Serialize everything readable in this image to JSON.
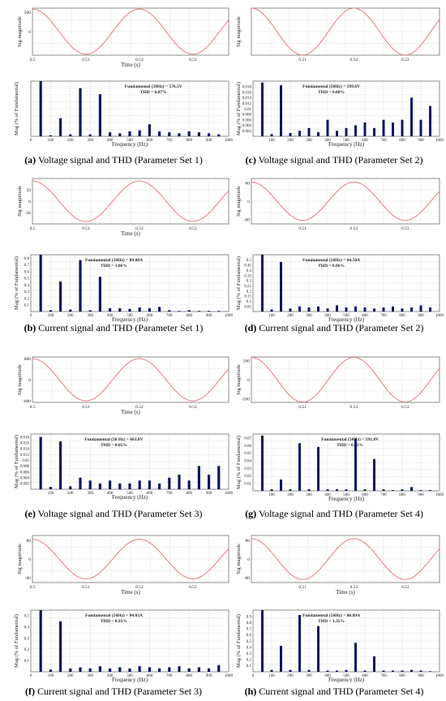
{
  "colors": {
    "signal": "#e36f6f",
    "bar": "#0b1466",
    "grid": "#b9b9b9",
    "frame": "#444444"
  },
  "chart_data": [
    {
      "id": "a-sig",
      "type": "line",
      "title": "",
      "xlabel": "Time (s)",
      "ylabel": "Sig magnitude",
      "xlim": [
        0.5,
        0.5367
      ],
      "ylim": [
        -600,
        600
      ],
      "yticks": [
        "500",
        "0"
      ],
      "xticks": [
        "0.5",
        "0.51",
        "0.52",
        "0.53"
      ],
      "amplitude": 576.5,
      "frequency": 50
    },
    {
      "id": "a-thd",
      "type": "bar",
      "xlabel": "Frequency (Hz)",
      "ylabel": "Mag (% of Fundamental)",
      "xlim": [
        0,
        1000
      ],
      "ylim": [
        0,
        0.55
      ],
      "xticks": [
        "0",
        "100",
        "200",
        "300",
        "400",
        "500",
        "600",
        "700",
        "800",
        "900",
        "1000"
      ],
      "yticks": [],
      "annotation": [
        "Fundamental (50Hz) = 576.5V",
        "THD = 0.87%"
      ],
      "annotation_pos": 0.62,
      "x": [
        50,
        100,
        150,
        200,
        250,
        300,
        350,
        400,
        450,
        500,
        550,
        600,
        650,
        700,
        750,
        800,
        850,
        900,
        950
      ],
      "values": [
        0.55,
        0.01,
        0.18,
        0.02,
        0.48,
        0.02,
        0.42,
        0.04,
        0.03,
        0.05,
        0.06,
        0.12,
        0.05,
        0.04,
        0.03,
        0.05,
        0.04,
        0.03,
        0.02
      ]
    },
    {
      "id": "c-sig",
      "type": "line",
      "xlabel": "",
      "ylabel": "Sig magnitude",
      "xlim": [
        0.5,
        0.5367
      ],
      "ylim": [
        -600,
        600
      ],
      "yticks": [],
      "xticks": [
        "0.51",
        "0.52",
        "0.53"
      ],
      "amplitude": 599.6,
      "frequency": 50
    },
    {
      "id": "c-thd",
      "type": "bar",
      "xlabel": "Frequency (Hz)",
      "ylabel": "Mag (% of Fundamental)",
      "xlim": [
        0,
        1000
      ],
      "ylim": [
        0,
        0.02
      ],
      "xticks": [
        "100",
        "200",
        "300",
        "400",
        "500",
        "600",
        "700",
        "800",
        "900",
        "1000"
      ],
      "yticks": [
        "0.018",
        "0.016",
        "0.014",
        "0.012",
        "0.01",
        "0.008",
        "0.006",
        "0.004",
        "0.002"
      ],
      "annotation": [
        "Fundamental (50Hz) = 599.6V",
        "THD = 0.08%"
      ],
      "annotation_pos": 0.42,
      "x": [
        50,
        100,
        150,
        200,
        250,
        300,
        350,
        400,
        450,
        500,
        550,
        600,
        650,
        700,
        750,
        800,
        850,
        900,
        950
      ],
      "values": [
        0.0195,
        0.0008,
        0.0185,
        0.0012,
        0.002,
        0.003,
        0.0015,
        0.006,
        0.002,
        0.003,
        0.004,
        0.005,
        0.003,
        0.006,
        0.005,
        0.006,
        0.014,
        0.006,
        0.011
      ]
    },
    {
      "id": "b-sig",
      "type": "line",
      "xlabel": "Time (s)",
      "ylabel": "Sig magnitude",
      "xlim": [
        0.5,
        0.5367
      ],
      "ylim": [
        -100,
        100
      ],
      "yticks": [
        "50",
        "0",
        "-50"
      ],
      "xticks": [
        "0.5",
        "0.51",
        "0.52",
        "0.53"
      ],
      "amplitude": 89.08,
      "frequency": 50
    },
    {
      "id": "b-thd",
      "type": "bar",
      "xlabel": "Frequency (Hz)",
      "ylabel": "Mag (% of Fundamental)",
      "xlim": [
        0,
        1000
      ],
      "ylim": [
        0,
        0.85
      ],
      "xticks": [
        "0",
        "100",
        "200",
        "300",
        "400",
        "500",
        "600",
        "700",
        "800",
        "900",
        "1000"
      ],
      "yticks": [
        "0.8",
        "0.7",
        "0.6",
        "0.5",
        "0.4",
        "0.3",
        "0.2",
        "0.1"
      ],
      "annotation": [
        "Fundamental (50Hz) = 89.08A",
        "THD = 1.06%"
      ],
      "annotation_pos": 0.42,
      "x": [
        50,
        100,
        150,
        200,
        250,
        300,
        350,
        400,
        450,
        500,
        550,
        600,
        650,
        700,
        750,
        800,
        850,
        900,
        950
      ],
      "values": [
        0.85,
        0.02,
        0.45,
        0.03,
        0.77,
        0.02,
        0.52,
        0.05,
        0.05,
        0.04,
        0.06,
        0.05,
        0.07,
        0.02,
        0.01,
        0.02,
        0.01,
        0.01,
        0.01
      ]
    },
    {
      "id": "d-sig",
      "type": "line",
      "xlabel": "",
      "ylabel": "Sig magnitude",
      "xlim": [
        0.5,
        0.5367
      ],
      "ylim": [
        -100,
        100
      ],
      "yticks": [
        "80",
        "0",
        "-80"
      ],
      "xticks": [
        "0.51",
        "0.52",
        "0.53"
      ],
      "amplitude": 84.5,
      "frequency": 50
    },
    {
      "id": "d-thd",
      "type": "bar",
      "xlabel": "Frequency (Hz)",
      "ylabel": "Mag (% of Fundamental)",
      "xlim": [
        0,
        1000
      ],
      "ylim": [
        0,
        0.55
      ],
      "xticks": [
        "100",
        "200",
        "300",
        "400",
        "500",
        "600",
        "700",
        "800",
        "900",
        "1000"
      ],
      "yticks": [
        "0.5",
        "0.45",
        "0.4",
        "0.35",
        "0.3",
        "0.25",
        "0.2",
        "0.15",
        "0.1",
        "0.05"
      ],
      "annotation": [
        "Fundamental (50Hz) = 84.50A",
        "THD = 0.96%"
      ],
      "annotation_pos": 0.42,
      "x": [
        50,
        100,
        150,
        200,
        250,
        300,
        350,
        400,
        450,
        500,
        550,
        600,
        650,
        700,
        750,
        800,
        850,
        900,
        950
      ],
      "values": [
        0.55,
        0.02,
        0.48,
        0.03,
        0.05,
        0.04,
        0.05,
        0.03,
        0.06,
        0.04,
        0.05,
        0.04,
        0.03,
        0.04,
        0.05,
        0.03,
        0.04,
        0.06,
        0.04
      ]
    },
    {
      "id": "e-sig",
      "type": "line",
      "xlabel": "Time (s)",
      "ylabel": "Sig magnitude",
      "xlim": [
        0.5,
        0.5367
      ],
      "ylim": [
        -650,
        650
      ],
      "yticks": [
        "600",
        "0",
        "-600"
      ],
      "xticks": [
        "0.5",
        "0.51",
        "0.52",
        "0.53"
      ],
      "amplitude": 603.8,
      "frequency": 50
    },
    {
      "id": "e-thd",
      "type": "bar",
      "xlabel": "Frequency (Hz)",
      "ylabel": "Mag (% of Fundamental)",
      "xlim": [
        0,
        1000
      ],
      "ylim": [
        0,
        0.019
      ],
      "xticks": [
        "100",
        "200",
        "300",
        "400",
        "500",
        "600",
        "700",
        "800",
        "900",
        "1000"
      ],
      "yticks": [
        "0.018",
        "0.016",
        "0.014",
        "0.012",
        "0.01",
        "0.008",
        "0.006",
        "0.004",
        "0.002"
      ],
      "annotation": [
        "Fundamental (50 Hz) = 603.8V",
        "THD = 0.05%"
      ],
      "annotation_pos": 0.42,
      "x": [
        50,
        100,
        150,
        200,
        250,
        300,
        350,
        400,
        450,
        500,
        550,
        600,
        650,
        700,
        750,
        800,
        850,
        900,
        950
      ],
      "values": [
        0.018,
        0.0008,
        0.0165,
        0.001,
        0.004,
        0.003,
        0.002,
        0.003,
        0.002,
        0.002,
        0.003,
        0.003,
        0.002,
        0.004,
        0.005,
        0.003,
        0.008,
        0.005,
        0.008
      ]
    },
    {
      "id": "g-sig",
      "type": "line",
      "xlabel": "",
      "ylabel": "Sig magnitude",
      "xlim": [
        0.5,
        0.5367
      ],
      "ylim": [
        -600,
        600
      ],
      "yticks": [
        "500",
        "0",
        "-500"
      ],
      "xticks": [
        "0.51",
        "0.52",
        "0.53"
      ],
      "amplitude": 591.8,
      "frequency": 50
    },
    {
      "id": "g-thd",
      "type": "bar",
      "xlabel": "Frequency (Hz)",
      "ylabel": "Mag (% of Fundamental)",
      "xlim": [
        0,
        1000
      ],
      "ylim": [
        0,
        0.075
      ],
      "xticks": [
        "100",
        "200",
        "300",
        "400",
        "500",
        "600",
        "700",
        "800",
        "900",
        "1000"
      ],
      "yticks": [
        "0.07",
        "0.06",
        "0.05",
        "0.04",
        "0.03",
        "0.02",
        "0.01"
      ],
      "annotation": [
        "Fundamental (50Hz) = 591.8V",
        "THD = 0.12%"
      ],
      "annotation_pos": 0.52,
      "x": [
        50,
        100,
        150,
        200,
        250,
        300,
        350,
        400,
        450,
        500,
        550,
        600,
        650,
        700,
        750,
        800,
        850,
        900,
        950
      ],
      "values": [
        0.073,
        0.002,
        0.015,
        0.002,
        0.063,
        0.002,
        0.058,
        0.002,
        0.002,
        0.002,
        0.069,
        0.002,
        0.042,
        0.002,
        0.001,
        0.002,
        0.005,
        0.001,
        0.001
      ]
    },
    {
      "id": "f-sig",
      "type": "line",
      "xlabel": "Time (s)",
      "ylabel": "Sig magnitude",
      "xlim": [
        0.5,
        0.5367
      ],
      "ylim": [
        -100,
        100
      ],
      "yticks": [
        "80",
        "0",
        "-80"
      ],
      "xticks": [
        "0.5",
        "0.51",
        "0.52",
        "0.53"
      ],
      "amplitude": 84.03,
      "frequency": 50
    },
    {
      "id": "f-thd",
      "type": "bar",
      "xlabel": "Frequency (Hz)",
      "ylabel": "Mag (% of Fundamental)",
      "xlim": [
        0,
        1000
      ],
      "ylim": [
        0,
        0.55
      ],
      "xticks": [
        "0",
        "100",
        "200",
        "300",
        "400",
        "500",
        "600",
        "700",
        "800",
        "900",
        "1000"
      ],
      "yticks": [
        "0.5",
        "0.4",
        "0.3",
        "0.2",
        "0.1"
      ],
      "annotation": [
        "Fundamental (50Hz) = 84.03A",
        "THD = 0.93%"
      ],
      "annotation_pos": 0.42,
      "x": [
        50,
        100,
        150,
        200,
        250,
        300,
        350,
        400,
        450,
        500,
        550,
        600,
        650,
        700,
        750,
        800,
        850,
        900,
        950
      ],
      "values": [
        0.55,
        0.02,
        0.45,
        0.03,
        0.04,
        0.03,
        0.05,
        0.03,
        0.04,
        0.03,
        0.05,
        0.04,
        0.03,
        0.04,
        0.05,
        0.03,
        0.04,
        0.03,
        0.06
      ]
    },
    {
      "id": "h-sig",
      "type": "line",
      "xlabel": "Time (s)",
      "ylabel": "Sig magnitude",
      "xlim": [
        0.5,
        0.5367
      ],
      "ylim": [
        -100,
        100
      ],
      "yticks": [
        "80",
        "0",
        "-80"
      ],
      "xticks": [
        "0.51",
        "0.52",
        "0.53"
      ],
      "amplitude": 86.89,
      "frequency": 50
    },
    {
      "id": "h-thd",
      "type": "bar",
      "xlabel": "Frequency (Hz)",
      "ylabel": "Mag (% of Fundamental)",
      "xlim": [
        0,
        1000
      ],
      "ylim": [
        0,
        1
      ],
      "xticks": [
        "0",
        "100",
        "200",
        "300",
        "400",
        "500",
        "600",
        "700",
        "800",
        "900",
        "1000"
      ],
      "yticks": [
        "0.9",
        "0.8",
        "0.7",
        "0.6",
        "0.5",
        "0.4",
        "0.3",
        "0.2",
        "0.1"
      ],
      "annotation": [
        "Fundamental (50Hz) = 86.89A",
        "THD = 1.35%"
      ],
      "annotation_pos": 0.42,
      "x": [
        50,
        100,
        150,
        200,
        250,
        300,
        350,
        400,
        450,
        500,
        550,
        600,
        650,
        700,
        750,
        800,
        850,
        900,
        950
      ],
      "values": [
        1.0,
        0.03,
        0.42,
        0.03,
        0.92,
        0.03,
        0.74,
        0.02,
        0.02,
        0.03,
        0.47,
        0.02,
        0.25,
        0.02,
        0.02,
        0.02,
        0.03,
        0.02,
        0.01
      ]
    }
  ],
  "captions": {
    "a": {
      "label": "(a)",
      "text": " Voltage signal and THD (Parameter Set 1)"
    },
    "c": {
      "label": "(c)",
      "text": " Voltage signal and THD (Parameter Set 2)"
    },
    "b": {
      "label": "(b)",
      "text": " Current signal and THD (Parameter Set 1)"
    },
    "d": {
      "label": "(d)",
      "text": " Current signal and THD (Parameter Set 2)"
    },
    "e": {
      "label": "(e)",
      "text": " Voltage signal and THD (Parameter Set 3)"
    },
    "g": {
      "label": "(g)",
      "text": " Voltage signal and THD (Parameter Set 4)"
    },
    "f": {
      "label": "(f)",
      "text": " Current signal and THD (Parameter Set 3)"
    },
    "h": {
      "label": "(h)",
      "text": " Current signal and THD (Parameter Set 4)"
    }
  }
}
